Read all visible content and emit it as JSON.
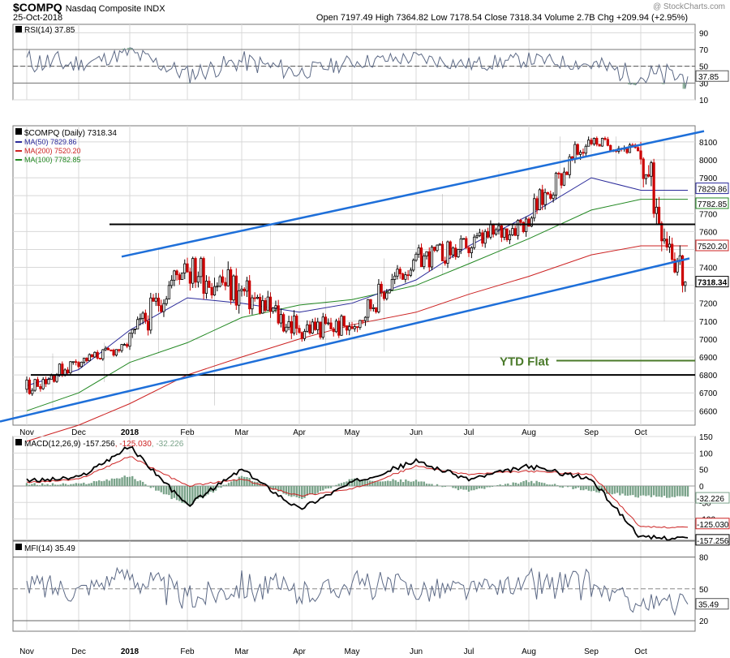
{
  "header": {
    "symbol": "$COMPQ",
    "name": "Nasdaq Composite INDX",
    "date": "25-Oct-2018",
    "ohlc_line": "Open 7197.49  High 7364.82  Low 7178.54  Close 7318.34  Volume 2.7B  Chg +209.94 (+2.95%)",
    "watermark": "@ StockCharts.com"
  },
  "colors": {
    "up": "#000000",
    "down": "#cc0000",
    "ma50": "#2a2a9a",
    "ma200": "#cc2222",
    "ma100": "#228822",
    "trend": "#1e6fd9",
    "level": "#000000",
    "ytd": "#4a7a2a",
    "rsi_line": "#5d6a86",
    "fill": "#7aa38a",
    "grid": "#d8d8d8"
  },
  "x_axis": {
    "months": [
      "Nov",
      "Dec",
      "2018",
      "Feb",
      "Mar",
      "Apr",
      "May",
      "Jun",
      "Jul",
      "Aug",
      "Sep",
      "Oct"
    ]
  },
  "chart_data": [
    {
      "type": "line",
      "panel": "rsi",
      "legend": "RSI(14) 37.85",
      "ylim": [
        10,
        100
      ],
      "ticks": [
        90,
        70,
        50,
        30,
        10
      ],
      "levels": [
        70,
        50,
        30
      ],
      "current_label": "37.85",
      "months": [
        {
          "m": "Nov",
          "v": 56,
          "lo": 38,
          "hi": 72
        },
        {
          "m": "Dec",
          "v": 52,
          "lo": 44,
          "hi": 64
        },
        {
          "m": "2018",
          "v": 66,
          "lo": 55,
          "hi": 80
        },
        {
          "m": "Feb",
          "v": 40,
          "lo": 28,
          "hi": 55
        },
        {
          "m": "Mar",
          "v": 56,
          "lo": 40,
          "hi": 68
        },
        {
          "m": "Apr",
          "v": 43,
          "lo": 33,
          "hi": 55
        },
        {
          "m": "May",
          "v": 55,
          "lo": 45,
          "hi": 65
        },
        {
          "m": "Jun",
          "v": 60,
          "lo": 50,
          "hi": 70
        },
        {
          "m": "Jul",
          "v": 52,
          "lo": 44,
          "hi": 65
        },
        {
          "m": "Aug",
          "v": 58,
          "lo": 50,
          "hi": 70
        },
        {
          "m": "Sep",
          "v": 52,
          "lo": 40,
          "hi": 68
        },
        {
          "m": "Oct",
          "v": 32,
          "lo": 20,
          "hi": 55
        }
      ],
      "last": 37.85
    },
    {
      "type": "candlestick",
      "panel": "price",
      "legend": [
        "$COMPQ (Daily) 7318.34",
        "MA(50) 7829.86",
        "MA(200) 7520.20",
        "MA(100) 7782.85"
      ],
      "ylim": [
        6520,
        8190
      ],
      "ticks": [
        8100,
        8000,
        7900,
        7800,
        7700,
        7600,
        7500,
        7400,
        7300,
        7200,
        7100,
        7000,
        6900,
        6800,
        6700,
        6600
      ],
      "tags": [
        {
          "v": 7829.86,
          "t": "7829.86"
        },
        {
          "v": 7782.85,
          "t": "7782.85"
        },
        {
          "v": 7520.2,
          "t": "7520.20"
        },
        {
          "v": 7318.34,
          "t": "7318.34"
        }
      ],
      "months": [
        {
          "m": "Nov",
          "o": 6720,
          "h": 6920,
          "l": 6600,
          "c": 6870
        },
        {
          "m": "Dec",
          "o": 6870,
          "h": 6980,
          "l": 6760,
          "c": 6960
        },
        {
          "m": "2018",
          "o": 6960,
          "h": 7510,
          "l": 6920,
          "c": 7420
        },
        {
          "m": "Feb",
          "o": 7420,
          "h": 7460,
          "l": 6630,
          "c": 7270
        },
        {
          "m": "Mar",
          "o": 7270,
          "h": 7640,
          "l": 7000,
          "c": 7060
        },
        {
          "m": "Apr",
          "o": 7060,
          "h": 7290,
          "l": 6810,
          "c": 7070
        },
        {
          "m": "May",
          "o": 7070,
          "h": 7450,
          "l": 6930,
          "c": 7440
        },
        {
          "m": "Jun",
          "o": 7440,
          "h": 7810,
          "l": 7360,
          "c": 7510
        },
        {
          "m": "Jul",
          "o": 7510,
          "h": 7940,
          "l": 7440,
          "c": 7670
        },
        {
          "m": "Aug",
          "o": 7670,
          "h": 8130,
          "l": 7620,
          "c": 8110
        },
        {
          "m": "Sep",
          "o": 8110,
          "h": 8130,
          "l": 7880,
          "c": 8050
        },
        {
          "m": "Oct",
          "o": 8050,
          "h": 8100,
          "l": 7100,
          "c": 7318.34
        }
      ],
      "ma50_monthly": [
        6740,
        6830,
        7050,
        7230,
        7200,
        7150,
        7200,
        7330,
        7520,
        7690,
        7900,
        7830
      ],
      "ma100_monthly": [
        6600,
        6700,
        6870,
        6980,
        7120,
        7190,
        7220,
        7300,
        7420,
        7560,
        7720,
        7780
      ],
      "ma200_monthly": [
        6430,
        6520,
        6640,
        6800,
        6900,
        7000,
        7080,
        7150,
        7250,
        7350,
        7470,
        7520
      ],
      "annotation": {
        "text": "YTD Flat",
        "value": 6880
      },
      "horizontal_levels": [
        7640,
        6800
      ],
      "trendlines": [
        {
          "from": {
            "m": "Jan",
            "v": 7460
          },
          "to": {
            "m": "Oct",
            "v": 8160
          }
        },
        {
          "from": {
            "m": "Oct 2017",
            "v": 6540
          },
          "to": {
            "m": "Oct",
            "v": 7450
          }
        }
      ]
    },
    {
      "type": "line",
      "panel": "macd",
      "legend": [
        "MACD(12,26,9)",
        "-157.256",
        ", -125.030",
        ", -32.226"
      ],
      "ylim": [
        -165,
        150
      ],
      "ticks": [
        150,
        100,
        50,
        0,
        -50,
        -100
      ],
      "tags": [
        {
          "v": -32.226,
          "t": "-32.226"
        },
        {
          "v": -125.03,
          "t": "-125.030"
        },
        {
          "v": -157.256,
          "t": "-157.256"
        }
      ],
      "months": [
        {
          "m": "Nov",
          "macd": 15,
          "signal": 10
        },
        {
          "m": "Dec",
          "macd": 25,
          "signal": 20
        },
        {
          "m": "2018",
          "macd": 120,
          "signal": 90
        },
        {
          "m": "Feb",
          "macd": -60,
          "signal": 0
        },
        {
          "m": "Mar",
          "macd": 50,
          "signal": 20
        },
        {
          "m": "Apr",
          "macd": -70,
          "signal": -30
        },
        {
          "m": "May",
          "macd": 10,
          "signal": -10
        },
        {
          "m": "Jun",
          "macd": 75,
          "signal": 60
        },
        {
          "m": "Jul",
          "macd": 20,
          "signal": 35
        },
        {
          "m": "Aug",
          "macd": 60,
          "signal": 45
        },
        {
          "m": "Sep",
          "macd": 20,
          "signal": 35
        },
        {
          "m": "Oct",
          "macd": -157.256,
          "signal": -125.03
        }
      ],
      "last": {
        "macd": -157.256,
        "signal": -125.03,
        "histogram": -32.226
      }
    },
    {
      "type": "line",
      "panel": "mfi",
      "legend": "MFI(14) 35.49",
      "ylim": [
        10,
        95
      ],
      "ticks": [
        80,
        50,
        20
      ],
      "levels": [
        80,
        50,
        20
      ],
      "current_label": "35.49",
      "months": [
        {
          "m": "Nov",
          "v": 55,
          "lo": 40,
          "hi": 68
        },
        {
          "m": "Dec",
          "v": 50,
          "lo": 42,
          "hi": 62
        },
        {
          "m": "2018",
          "v": 65,
          "lo": 50,
          "hi": 85
        },
        {
          "m": "Feb",
          "v": 40,
          "lo": 25,
          "hi": 55
        },
        {
          "m": "Mar",
          "v": 55,
          "lo": 35,
          "hi": 70
        },
        {
          "m": "Apr",
          "v": 45,
          "lo": 30,
          "hi": 55
        },
        {
          "m": "May",
          "v": 55,
          "lo": 40,
          "hi": 70
        },
        {
          "m": "Jun",
          "v": 50,
          "lo": 38,
          "hi": 65
        },
        {
          "m": "Jul",
          "v": 50,
          "lo": 40,
          "hi": 60
        },
        {
          "m": "Aug",
          "v": 55,
          "lo": 40,
          "hi": 78
        },
        {
          "m": "Sep",
          "v": 52,
          "lo": 42,
          "hi": 65
        },
        {
          "m": "Oct",
          "v": 38,
          "lo": 25,
          "hi": 48
        }
      ],
      "last": 35.49
    }
  ]
}
